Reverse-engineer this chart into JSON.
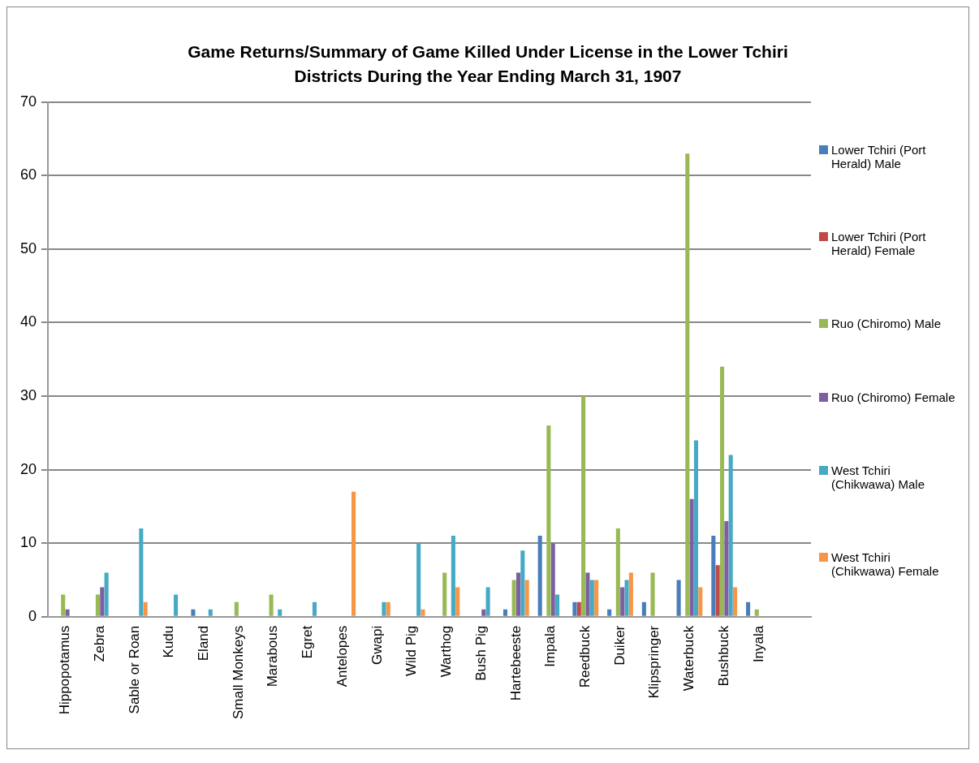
{
  "chart_data": {
    "type": "bar",
    "title": "Game Returns/Summary of Game Killed Under License in the Lower Tchiri Districts During the Year Ending March 31, 1907",
    "categories": [
      "Hippopotamus",
      "Zebra",
      "Sable or Roan",
      "Kudu",
      "Eland",
      "Small Monkeys",
      "Marabous",
      "Egret",
      "Antelopes",
      "Gwapi",
      "Wild Pig",
      "Warthog",
      "Bush Pig",
      "Hartebeeste",
      "Impala",
      "Reedbuck",
      "Duiker",
      "Klipspringer",
      "Waterbuck",
      "Bushbuck",
      "Inyala",
      null
    ],
    "series": [
      {
        "name": "Lower Tchiri (Port Herald) Male",
        "color": "#4a7ebb",
        "values": [
          0,
          0,
          0,
          0,
          1,
          0,
          0,
          0,
          0,
          0,
          0,
          0,
          0,
          1,
          11,
          2,
          1,
          2,
          5,
          11,
          2,
          null
        ]
      },
      {
        "name": "Lower Tchiri (Port Herald) Female",
        "color": "#be4b48",
        "values": [
          0,
          0,
          0,
          0,
          0,
          0,
          0,
          0,
          0,
          0,
          0,
          0,
          0,
          0,
          0,
          2,
          0,
          0,
          0,
          7,
          0,
          null
        ]
      },
      {
        "name": "Ruo (Chiromo) Male",
        "color": "#98b954",
        "values": [
          3,
          3,
          0,
          0,
          0,
          2,
          3,
          0,
          0,
          0,
          0,
          6,
          0,
          5,
          26,
          30,
          12,
          6,
          63,
          34,
          1,
          null
        ]
      },
      {
        "name": "Ruo (Chiromo) Female",
        "color": "#7d60a0",
        "values": [
          1,
          4,
          0,
          0,
          0,
          0,
          0,
          0,
          0,
          0,
          0,
          0,
          1,
          6,
          10,
          6,
          4,
          0,
          16,
          13,
          0,
          null
        ]
      },
      {
        "name": "West Tchiri (Chikwawa) Male",
        "color": "#46aac5",
        "values": [
          0,
          6,
          12,
          3,
          1,
          0,
          1,
          2,
          0,
          2,
          10,
          11,
          4,
          9,
          3,
          5,
          5,
          0,
          24,
          22,
          0,
          null
        ]
      },
      {
        "name": "West Tchiri (Chikwawa) Female",
        "color": "#f79646",
        "values": [
          0,
          0,
          2,
          0,
          0,
          0,
          0,
          0,
          17,
          2,
          1,
          4,
          0,
          5,
          0,
          5,
          6,
          0,
          4,
          4,
          0,
          null
        ]
      }
    ],
    "ylim": [
      0,
      70
    ],
    "yticks": [
      0,
      10,
      20,
      30,
      40,
      50,
      60,
      70
    ],
    "grid": "y",
    "legend": "right"
  }
}
